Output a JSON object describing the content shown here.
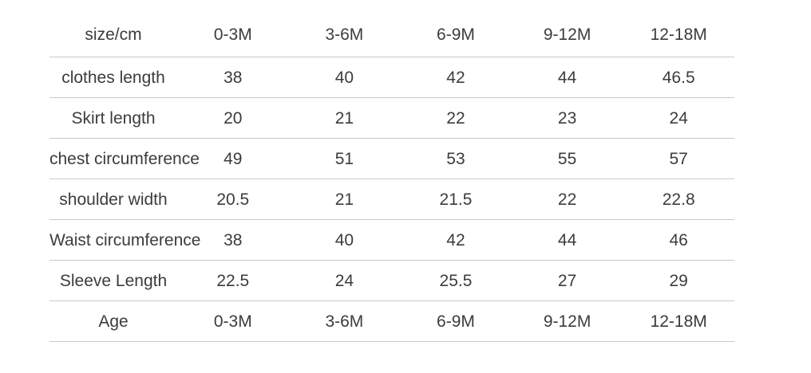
{
  "colors": {
    "background": "#ffffff",
    "text": "#3c3c3c",
    "separator_line": "#c9c9c9"
  },
  "table": {
    "header": [
      "size/cm",
      "0-3M",
      "3-6M",
      "6-9M",
      "9-12M",
      "12-18M"
    ],
    "rows": [
      {
        "label": "clothes length",
        "values": [
          "38",
          "40",
          "42",
          "44",
          "46.5"
        ]
      },
      {
        "label": "Skirt length",
        "values": [
          "20",
          "21",
          "22",
          "23",
          "24"
        ]
      },
      {
        "label": "chest circumference",
        "values": [
          "49",
          "51",
          "53",
          "55",
          "57"
        ]
      },
      {
        "label": "shoulder width",
        "values": [
          "20.5",
          "21",
          "21.5",
          "22",
          "22.8"
        ]
      },
      {
        "label": "Waist circumference",
        "values": [
          "38",
          "40",
          "42",
          "44",
          "46"
        ]
      },
      {
        "label": "Sleeve Length",
        "values": [
          "22.5",
          "24",
          "25.5",
          "27",
          "29"
        ]
      },
      {
        "label": "Age",
        "values": [
          "0-3M",
          "3-6M",
          "6-9M",
          "9-12M",
          "12-18M"
        ]
      }
    ]
  }
}
